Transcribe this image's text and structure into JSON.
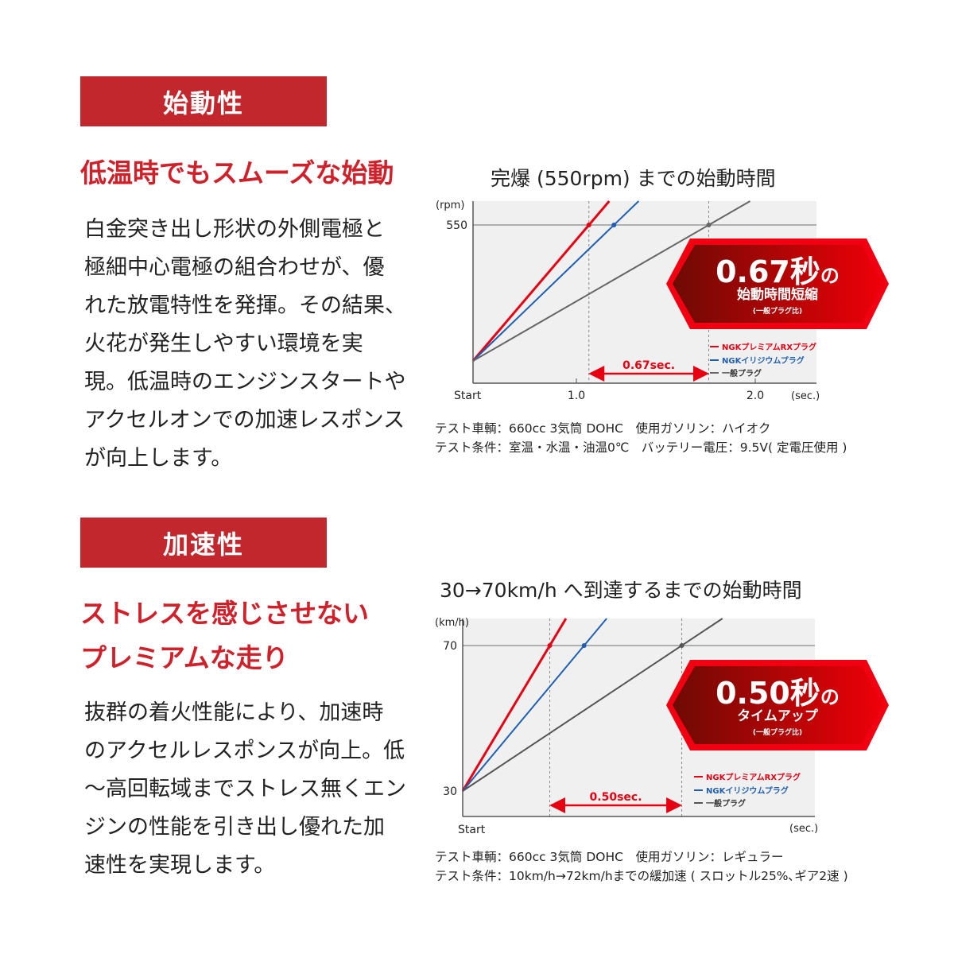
{
  "sections": [
    {
      "badge": "始動性",
      "heading_lines": [
        "低温時でもスムーズな始動"
      ],
      "body_lines": [
        "白金突き出し形状の外側電極と",
        "極細中心電極の組合わせが、優",
        "れた放電特性を発揮。その結果、",
        "火花が発生しやすい環境を実",
        "現。低温時のエンジンスタートや",
        "アクセルオンでの加速レスポンス",
        "が向上します。"
      ],
      "notes": [
        "テスト車輌：660cc 3気筒 DOHC　使用ガソリン：ハイオク",
        "テスト条件：室温・水温・油温0℃　バッテリー電圧：9.5V( 定電圧使用 )"
      ]
    },
    {
      "badge": "加速性",
      "heading_lines": [
        "ストレスを感じさせない",
        "プレミアムな走り"
      ],
      "body_lines": [
        "抜群の着火性能により、加速時",
        "のアクセルレスポンスが向上。低",
        "〜高回転域までストレス無くエン",
        "ジンの性能を引き出し優れた加",
        "速性を実現します。"
      ],
      "notes": [
        "テスト車輌：660cc 3気筒 DOHC　使用ガソリン：レギュラー",
        "テスト条件：10km/h→72km/hまでの緩加速 ( スロットル25%､ギア2速 )"
      ]
    }
  ],
  "chart_data": [
    {
      "type": "line",
      "title": "完爆 (550rpm) までの始動時間",
      "ylabel": "(rpm)",
      "xlabel": "(sec.)",
      "x_start_label": "Start",
      "x_ticks": [
        "1.0",
        "2.0"
      ],
      "y_ticks": [
        "550"
      ],
      "target_y": 550,
      "grid": false,
      "legend_placement": "bottom-right",
      "series": [
        {
          "name": "NGKプレミアムRXプラグ",
          "color": "#e60012",
          "time_to_target": 1.07
        },
        {
          "name": "NGKイリジウムプラグ",
          "color": "#1f5fb4",
          "time_to_target": 1.21
        },
        {
          "name": "一般プラグ",
          "color": "#666666",
          "time_to_target": 1.74
        }
      ],
      "gap_label": "0.67sec.",
      "callout": {
        "main": "0.67秒",
        "suffix": "の",
        "sub": "始動時間短縮",
        "note": "(一般プラグ比)"
      }
    },
    {
      "type": "line",
      "title": "30→70km/h へ到達するまでの始動時間",
      "ylabel": "(km/h)",
      "xlabel": "(sec.)",
      "x_start_label": "Start",
      "x_ticks": [],
      "y_ticks": [
        "70",
        "30"
      ],
      "target_y": 70,
      "start_y": 30,
      "grid": false,
      "legend_placement": "bottom-right",
      "series": [
        {
          "name": "NGKプレミアムRXプラグ",
          "color": "#e60012",
          "time_to_target": 0.33
        },
        {
          "name": "NGKイリジウムプラグ",
          "color": "#1f5fb4",
          "time_to_target": 0.46
        },
        {
          "name": "一般プラグ",
          "color": "#555555",
          "time_to_target": 0.83
        }
      ],
      "gap_label": "0.50sec.",
      "callout": {
        "main": "0.50秒",
        "suffix": "の",
        "sub": "タイムアップ",
        "note": "(一般プラグ比)"
      }
    }
  ]
}
